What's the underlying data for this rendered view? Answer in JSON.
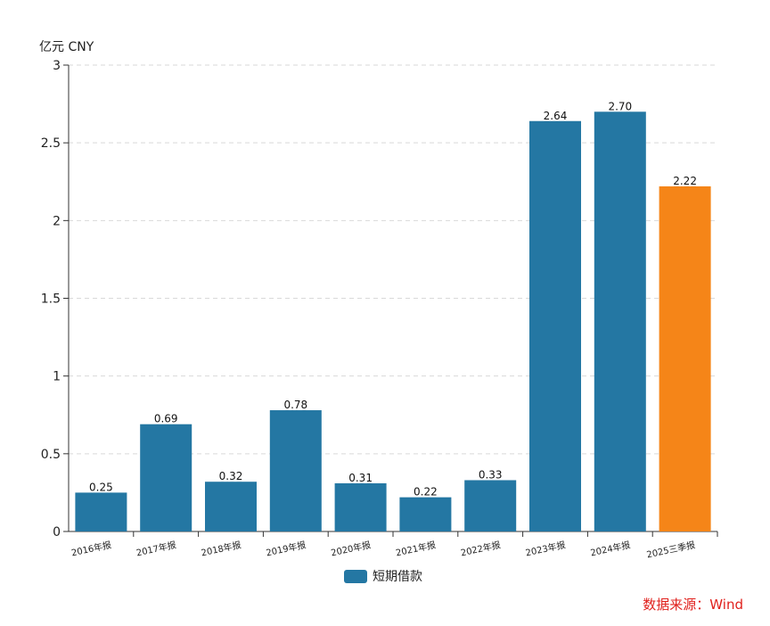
{
  "unit_label": "亿元  CNY",
  "legend": {
    "label": "短期借款",
    "color": "#2477a3"
  },
  "source": "数据来源：Wind",
  "colors": {
    "primary": "#2477a3",
    "highlight": "#f58518"
  },
  "chart_data": {
    "type": "bar",
    "categories": [
      "2016年报",
      "2017年报",
      "2018年报",
      "2019年报",
      "2020年报",
      "2021年报",
      "2022年报",
      "2023年报",
      "2024年报",
      "2025三季报"
    ],
    "series": [
      {
        "name": "短期借款",
        "values": [
          0.25,
          0.69,
          0.32,
          0.78,
          0.31,
          0.22,
          0.33,
          2.64,
          2.7,
          2.22
        ]
      }
    ],
    "data_labels": [
      "0.25",
      "0.69",
      "0.32",
      "0.78",
      "0.31",
      "0.22",
      "0.33",
      "2.64",
      "2.70",
      "2.22"
    ],
    "highlight_index": 9,
    "ylim": [
      0,
      3
    ],
    "yticks": [
      0,
      0.5,
      1,
      1.5,
      2,
      2.5,
      3
    ],
    "ytick_labels": [
      "0",
      "0.5",
      "1",
      "1.5",
      "2",
      "2.5",
      "3"
    ],
    "grid": true
  }
}
